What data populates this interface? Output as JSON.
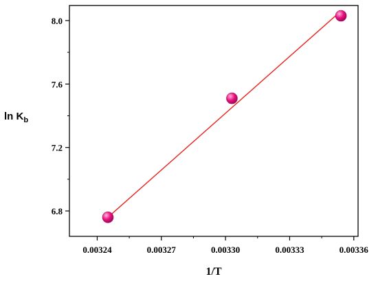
{
  "chart_data": {
    "type": "scatter",
    "title": "",
    "xlabel": "1/T",
    "ylabel": "ln K",
    "ylabel_subscript": "b",
    "xlim": [
      0.003227,
      0.003362
    ],
    "ylim": [
      6.64,
      8.095
    ],
    "x_ticks": [
      0.00324,
      0.00327,
      0.0033,
      0.00333,
      0.00336
    ],
    "x_tick_labels": [
      "0.00324",
      "0.00327",
      "0.00330",
      "0.00333",
      "0.00336"
    ],
    "y_ticks": [
      6.8,
      7.2,
      7.6,
      8.0
    ],
    "y_tick_labels": [
      "6.8",
      "7.2",
      "7.6",
      "8.0"
    ],
    "grid": false,
    "series": [
      {
        "points": [
          {
            "x": 0.003245,
            "y": 6.76
          },
          {
            "x": 0.003303,
            "y": 7.51
          },
          {
            "x": 0.003354,
            "y": 8.03
          }
        ],
        "fit_line": [
          {
            "x": 0.003245,
            "y": 6.76
          },
          {
            "x": 0.003354,
            "y": 8.06
          }
        ]
      }
    ],
    "colors": {
      "marker": "#e8117f",
      "marker_highlight": "#ffb3da",
      "fit_line": "#e8231f",
      "axis": "#000000"
    }
  }
}
